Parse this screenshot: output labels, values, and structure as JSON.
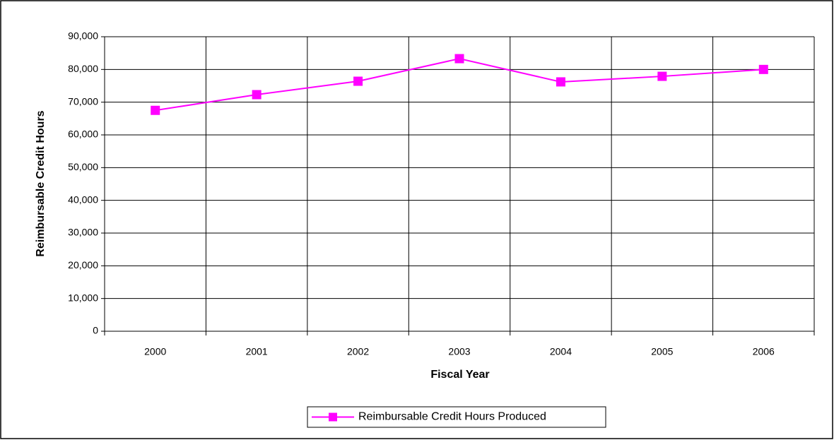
{
  "chart_data": {
    "type": "line",
    "x_label": "Fiscal Year",
    "y_label": "Reimbursable Credit Hours",
    "categories": [
      "2000",
      "2001",
      "2002",
      "2003",
      "2004",
      "2005",
      "2006"
    ],
    "series": [
      {
        "name": "Reimbursable Credit Hours Produced",
        "color": "#ff00ff",
        "values": [
          67500,
          72300,
          76400,
          83300,
          76200,
          77900,
          80000
        ]
      }
    ],
    "ylim": [
      0,
      90000
    ],
    "yticks": [
      0,
      {
        "value": 10000,
        "label": "10,000"
      },
      {
        "value": 20000,
        "label": "20,000"
      },
      {
        "value": 30000,
        "label": "30,000"
      },
      {
        "value": 40000,
        "label": "40,000"
      },
      {
        "value": 50000,
        "label": "50,000"
      },
      {
        "value": 60000,
        "label": "60,000"
      },
      {
        "value": 70000,
        "label": "70,000"
      },
      {
        "value": 80000,
        "label": "80,000"
      },
      {
        "value": 90000,
        "label": "90,000"
      }
    ],
    "grid": true,
    "legend": "bottom"
  }
}
